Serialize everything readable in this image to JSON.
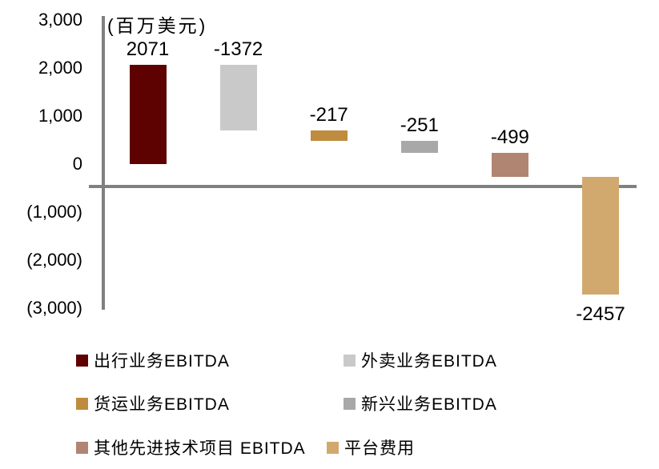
{
  "title": "(百万美元)",
  "chart_data": {
    "type": "bar",
    "subtype": "waterfall",
    "title": "(百万美元)",
    "xlabel": "",
    "ylabel": "百万美元",
    "ylim": [
      -3000,
      3000
    ],
    "grid": false,
    "legend_position": "bottom",
    "axis_color": "#808080",
    "categories": [
      "出行业务EBITDA",
      "外卖业务EBITDA",
      "货运业务EBITDA",
      "新兴业务EBITDA",
      "其他先进技术项目 EBITDA",
      "平台费用"
    ],
    "values": [
      2071,
      -1372,
      -217,
      -251,
      -499,
      -2457
    ],
    "cumulative_start": [
      0,
      2071,
      699,
      482,
      231,
      -268
    ],
    "cumulative_end": [
      2071,
      699,
      482,
      231,
      -268,
      -2725
    ],
    "bar_labels": [
      "2071",
      "-1372",
      "-217",
      "-251",
      "-499",
      "-2457"
    ],
    "bar_colors": [
      "#5e0101",
      "#c9c9c9",
      "#bf8b3e",
      "#a8a8a8",
      "#b08572",
      "#d1a96e"
    ],
    "y_ticks": [
      {
        "value": 3000,
        "label": "3,000"
      },
      {
        "value": 2000,
        "label": "2,000"
      },
      {
        "value": 1000,
        "label": "1,000"
      },
      {
        "value": 0,
        "label": "0"
      },
      {
        "value": -1000,
        "label": "(1,000)"
      },
      {
        "value": -2000,
        "label": "(2,000)"
      },
      {
        "value": -3000,
        "label": "(3,000)"
      }
    ]
  },
  "legend": {
    "items": [
      {
        "label": "出行业务EBITDA",
        "color": "#5e0101"
      },
      {
        "label": "外卖业务EBITDA",
        "color": "#c9c9c9"
      },
      {
        "label": "货运业务EBITDA",
        "color": "#bf8b3e"
      },
      {
        "label": "新兴业务EBITDA",
        "color": "#a8a8a8"
      },
      {
        "label": "其他先进技术项目 EBITDA",
        "color": "#b08572"
      },
      {
        "label": "平台费用",
        "color": "#d1a96e"
      }
    ]
  }
}
